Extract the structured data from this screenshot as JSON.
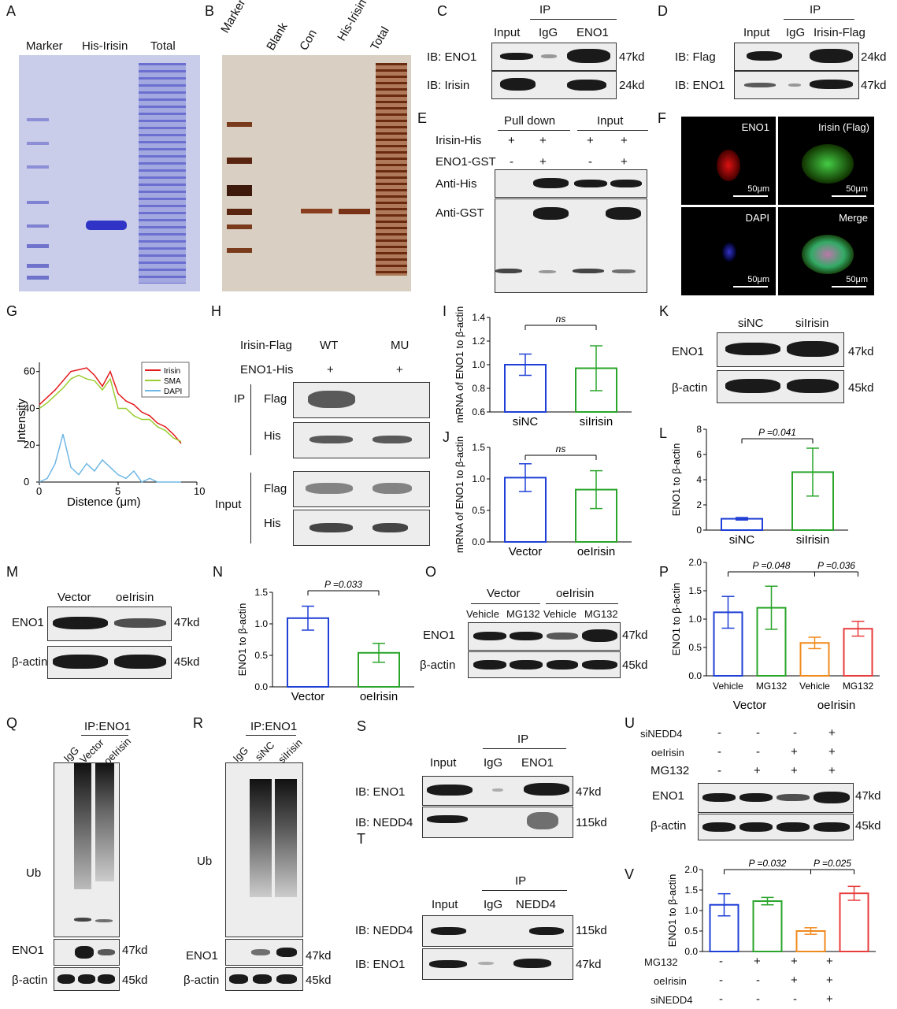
{
  "letters": [
    "A",
    "B",
    "C",
    "D",
    "E",
    "F",
    "G",
    "H",
    "I",
    "J",
    "K",
    "L",
    "M",
    "N",
    "O",
    "P",
    "Q",
    "R",
    "S",
    "T",
    "U",
    "V"
  ],
  "A": {
    "lanes": [
      "Marker",
      "His-Irisin",
      "Total"
    ]
  },
  "B": {
    "lanes": [
      "Marker",
      "Blank",
      "Con",
      "His-Irisin",
      "Total"
    ]
  },
  "C": {
    "ip": "IP",
    "cols": [
      "Input",
      "IgG",
      "ENO1"
    ],
    "rows": [
      "IB: ENO1",
      "IB: Irisin"
    ],
    "sizes": [
      "47kd",
      "24kd"
    ]
  },
  "D": {
    "ip": "IP",
    "cols": [
      "Input",
      "IgG",
      "Irisin-Flag"
    ],
    "rows": [
      "IB: Flag",
      "IB: ENO1"
    ],
    "sizes": [
      "24kd",
      "47kd"
    ]
  },
  "E": {
    "headers": [
      "Pull down",
      "Input"
    ],
    "row1": "Irisin-His",
    "row2": "ENO1-GST",
    "row1_signs": [
      "+",
      "+",
      "+",
      "+"
    ],
    "row2_signs": [
      "-",
      "+",
      "-",
      "+"
    ],
    "blots": [
      "Anti-His",
      "Anti-GST"
    ]
  },
  "F": {
    "labels": [
      "ENO1",
      "Irisin (Flag)",
      "DAPI",
      "Merge"
    ],
    "scale": "50μm"
  },
  "G": {
    "xlabel": "Distence (μm)",
    "ylabel": "Intensity",
    "legend": [
      "Irisin",
      "SMA",
      "DAPI"
    ],
    "xticks": [
      "0",
      "5",
      "10"
    ],
    "yticks": [
      "0",
      "20",
      "40",
      "60"
    ],
    "colors": {
      "Irisin": "#e41a1c",
      "SMA": "#9acd32",
      "DAPI": "#6fb7e6"
    }
  },
  "H": {
    "row1": "Irisin-Flag",
    "cols": [
      "WT",
      "MU"
    ],
    "row2": "ENO1-His",
    "row2_signs": [
      "+",
      "+"
    ],
    "groups": [
      "IP",
      "Input"
    ],
    "blots": [
      "Flag",
      "His",
      "Flag",
      "His"
    ]
  },
  "I": {
    "ylabel": "mRNA of ENO1 to β-actin",
    "yticks": [
      "0.6",
      "0.8",
      "1.0",
      "1.2",
      "1.4"
    ],
    "cats": [
      "siNC",
      "siIrisin"
    ],
    "ns": "ns"
  },
  "J": {
    "ylabel": "mRNA of ENO1 to β-actin",
    "yticks": [
      "0.0",
      "0.5",
      "1.0",
      "1.5"
    ],
    "cats": [
      "Vector",
      "oeIrisin"
    ],
    "ns": "ns"
  },
  "K": {
    "cols": [
      "siNC",
      "siIrisin"
    ],
    "rows": [
      "ENO1",
      "β-actin"
    ],
    "sizes": [
      "47kd",
      "45kd"
    ]
  },
  "L": {
    "ylabel": "ENO1 to β-actin",
    "yticks": [
      "0",
      "2",
      "4",
      "6",
      "8"
    ],
    "cats": [
      "siNC",
      "siIrisin"
    ],
    "p": "P =0.041"
  },
  "M": {
    "cols": [
      "Vector",
      "oeIrisin"
    ],
    "rows": [
      "ENO1",
      "β-actin"
    ],
    "sizes": [
      "47kd",
      "45kd"
    ]
  },
  "N": {
    "ylabel": "ENO1 to β-actin",
    "yticks": [
      "0.0",
      "0.5",
      "1.0",
      "1.5"
    ],
    "cats": [
      "Vector",
      "oeIrisin"
    ],
    "p": "P =0.033"
  },
  "O": {
    "groups": [
      "Vector",
      "oeIrisin"
    ],
    "cols": [
      "Vehicle",
      "MG132",
      "Vehicle",
      "MG132"
    ],
    "rows": [
      "ENO1",
      "β-actin"
    ],
    "sizes": [
      "47kd",
      "45kd"
    ]
  },
  "P": {
    "ylabel": "ENO1 to β-actin",
    "yticks": [
      "0.0",
      "0.5",
      "1.0",
      "1.5",
      "2.0"
    ],
    "cats": [
      "Vehicle",
      "MG132",
      "Vehicle",
      "MG132"
    ],
    "groups": [
      "Vector",
      "oeIrisin"
    ],
    "p1": "P =0.048",
    "p2": "P =0.036"
  },
  "Q": {
    "title": "IP:ENO1",
    "cols": [
      "IgG",
      "Vector",
      "oeIrisin"
    ],
    "rows": [
      "Ub",
      "ENO1",
      "β-actin"
    ],
    "sizes": [
      "47kd",
      "45kd"
    ]
  },
  "R": {
    "title": "IP:ENO1",
    "cols": [
      "IgG",
      "siNC",
      "siIrisin"
    ],
    "rows": [
      "Ub",
      "ENO1",
      "β-actin"
    ],
    "sizes": [
      "47kd",
      "45kd"
    ]
  },
  "S": {
    "ip": "IP",
    "cols": [
      "Input",
      "IgG",
      "ENO1"
    ],
    "rows": [
      "IB: ENO1",
      "IB: NEDD4"
    ],
    "sizes": [
      "47kd",
      "115kd"
    ]
  },
  "T": {
    "ip": "IP",
    "cols": [
      "Input",
      "IgG",
      "NEDD4"
    ],
    "rows": [
      "IB: NEDD4",
      "IB: ENO1"
    ],
    "sizes": [
      "115kd",
      "47kd"
    ]
  },
  "U": {
    "conds": [
      "siNEDD4",
      "oeIrisin",
      "MG132"
    ],
    "signs": [
      [
        "-",
        "-",
        "-",
        "+"
      ],
      [
        "-",
        "-",
        "+",
        "+"
      ],
      [
        "-",
        "+",
        "+",
        "+"
      ]
    ],
    "rows": [
      "ENO1",
      "β-actin"
    ],
    "sizes": [
      "47kd",
      "45kd"
    ]
  },
  "V": {
    "ylabel": "ENO1 to β-actin",
    "yticks": [
      "0.0",
      "0.5",
      "1.0",
      "1.5",
      "2.0"
    ],
    "p1": "P =0.032",
    "p2": "P =0.025",
    "conds": [
      "MG132",
      "oeIrisin",
      "siNEDD4"
    ],
    "signs": [
      [
        "-",
        "+",
        "+",
        "+"
      ],
      [
        "-",
        "-",
        "+",
        "+"
      ],
      [
        "-",
        "-",
        "-",
        "+"
      ]
    ]
  },
  "chart_data": [
    {
      "panel": "G",
      "type": "line",
      "xlabel": "Distence (μm)",
      "ylabel": "Intensity",
      "xlim": [
        0,
        10
      ],
      "ylim": [
        0,
        65
      ],
      "series": [
        {
          "name": "Irisin",
          "x": [
            0,
            0.5,
            1,
            1.5,
            2,
            2.5,
            3,
            3.5,
            4,
            4.5,
            5,
            5.5,
            6,
            6.5,
            7,
            7.5,
            8,
            8.5,
            9
          ],
          "y": [
            42,
            46,
            50,
            55,
            60,
            61,
            62,
            58,
            52,
            60,
            48,
            44,
            42,
            38,
            36,
            32,
            30,
            26,
            21
          ]
        },
        {
          "name": "SMA",
          "x": [
            0,
            0.5,
            1,
            1.5,
            2,
            2.5,
            3,
            3.5,
            4,
            4.5,
            5,
            5.5,
            6,
            6.5,
            7,
            7.5,
            8,
            8.5,
            9
          ],
          "y": [
            40,
            43,
            47,
            51,
            56,
            58,
            56,
            55,
            50,
            56,
            40,
            40,
            36,
            34,
            34,
            30,
            28,
            24,
            22
          ]
        },
        {
          "name": "DAPI",
          "x": [
            0,
            0.5,
            1,
            1.5,
            2,
            2.5,
            3,
            3.5,
            4,
            4.5,
            5,
            5.5,
            6,
            6.5,
            7,
            7.5,
            8,
            8.5,
            9
          ],
          "y": [
            0,
            2,
            10,
            26,
            8,
            4,
            10,
            6,
            12,
            8,
            4,
            2,
            6,
            0,
            2,
            0,
            0,
            0,
            0
          ]
        }
      ]
    },
    {
      "panel": "I",
      "type": "bar",
      "categories": [
        "siNC",
        "siIrisin"
      ],
      "values": [
        1.0,
        0.97
      ],
      "errors": [
        0.09,
        0.19
      ],
      "ylim": [
        0.6,
        1.4
      ],
      "ylabel": "mRNA of ENO1 to β-actin",
      "colors": [
        "#1f3fd6",
        "#2aa52a"
      ]
    },
    {
      "panel": "J",
      "type": "bar",
      "categories": [
        "Vector",
        "oeIrisin"
      ],
      "values": [
        1.02,
        0.83
      ],
      "errors": [
        0.22,
        0.3
      ],
      "ylim": [
        0,
        1.5
      ],
      "ylabel": "mRNA of ENO1 to β-actin",
      "colors": [
        "#1f3fd6",
        "#2aa52a"
      ]
    },
    {
      "panel": "L",
      "type": "bar",
      "categories": [
        "siNC",
        "siIrisin"
      ],
      "values": [
        0.9,
        4.6
      ],
      "errors": [
        0.1,
        1.9
      ],
      "ylim": [
        0,
        8
      ],
      "ylabel": "ENO1 to β-actin",
      "colors": [
        "#1f3fd6",
        "#2aa52a"
      ]
    },
    {
      "panel": "N",
      "type": "bar",
      "categories": [
        "Vector",
        "oeIrisin"
      ],
      "values": [
        1.09,
        0.54
      ],
      "errors": [
        0.19,
        0.15
      ],
      "ylim": [
        0,
        1.5
      ],
      "ylabel": "ENO1 to β-actin",
      "colors": [
        "#1f3fd6",
        "#2aa52a"
      ]
    },
    {
      "panel": "P",
      "type": "bar",
      "categories": [
        "Vehicle",
        "MG132",
        "Vehicle",
        "MG132"
      ],
      "values": [
        1.12,
        1.2,
        0.58,
        0.83
      ],
      "errors": [
        0.28,
        0.38,
        0.1,
        0.13
      ],
      "ylim": [
        0,
        2.0
      ],
      "ylabel": "ENO1 to β-actin",
      "colors": [
        "#1f3fd6",
        "#2aa52a",
        "#f08a1c",
        "#e83b3b"
      ]
    },
    {
      "panel": "V",
      "type": "bar",
      "categories": [
        "1",
        "2",
        "3",
        "4"
      ],
      "values": [
        1.14,
        1.23,
        0.5,
        1.42
      ],
      "errors": [
        0.27,
        0.09,
        0.08,
        0.17
      ],
      "ylim": [
        0,
        2.0
      ],
      "ylabel": "ENO1 to β-actin",
      "colors": [
        "#1f3fd6",
        "#2aa52a",
        "#f08a1c",
        "#e83b3b"
      ]
    }
  ]
}
